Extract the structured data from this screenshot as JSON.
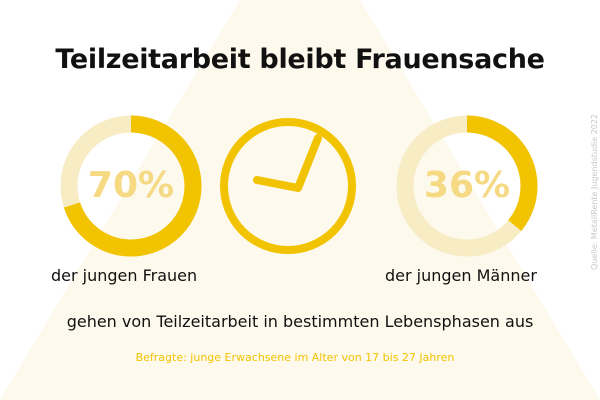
{
  "title": "Teilzeitarbeit bleibt Frauensache",
  "statement": "gehen von Teilzeitarbeit in bestimmten Lebensphasen aus",
  "respondents": "Befragte: junge Erwachsene im Alter von 17 bis 27 Jahren",
  "source": "Quelle: MetallRente Jugendstudie 2022",
  "colors": {
    "accent": "#f2c300",
    "track": "#f7ecc4",
    "percent_text": "#f5d983",
    "background_shape": "#fdf9ec",
    "text": "#111111"
  },
  "center_icon": "clock-icon",
  "chart_data": {
    "type": "pie",
    "categories": [
      "der jungen Frauen",
      "der jungen Männer"
    ],
    "values": [
      70,
      36
    ],
    "labels": [
      "70%",
      "36%"
    ]
  }
}
